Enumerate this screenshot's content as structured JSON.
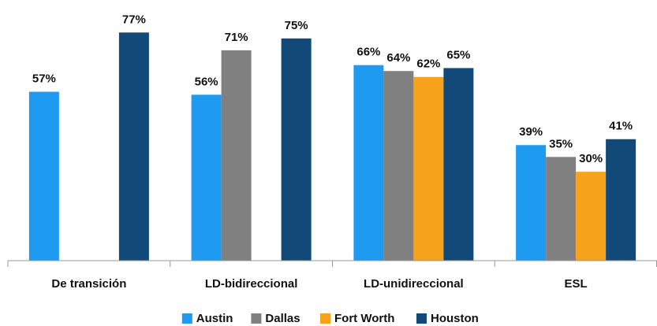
{
  "chart_data": {
    "type": "bar",
    "categories": [
      "De transición",
      "LD-bidireccional",
      "LD-unidireccional",
      "ESL"
    ],
    "series": [
      {
        "name": "Austin",
        "color": "#1e9bf0",
        "values": [
          57,
          56,
          66,
          39
        ],
        "value_labels": [
          "57%",
          "56%",
          "66%",
          "39%"
        ]
      },
      {
        "name": "Dallas",
        "color": "#808080",
        "values": [
          null,
          71,
          64,
          35
        ],
        "value_labels": [
          null,
          "71%",
          "64%",
          "35%"
        ]
      },
      {
        "name": "Fort Worth",
        "color": "#f7a21b",
        "values": [
          null,
          null,
          62,
          30
        ],
        "value_labels": [
          null,
          null,
          "62%",
          "30%"
        ]
      },
      {
        "name": "Houston",
        "color": "#114a78",
        "values": [
          77,
          75,
          65,
          41
        ],
        "value_labels": [
          "77%",
          "75%",
          "65%",
          "41%"
        ]
      }
    ],
    "ylim": [
      0,
      80
    ]
  }
}
